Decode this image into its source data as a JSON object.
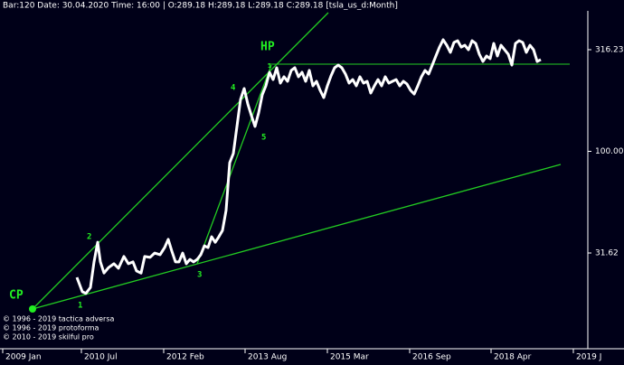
{
  "chart_data": {
    "type": "line",
    "title": "Bar:120 Date: 30.04.2020 Time: 16:00 | O:289.18 H:289.18 L:289.18 C:289.18 [tsla_us_d:Month]",
    "log_y": true,
    "grid": false,
    "xlim": [
      -21.25,
      141.25
    ],
    "xticks": [
      {
        "value": -20.5,
        "label": "2009 Jan"
      },
      {
        "value": 1.25,
        "label": "2010 Jul"
      },
      {
        "value": 24,
        "label": "2012 Feb"
      },
      {
        "value": 46.5,
        "label": "2013 Aug"
      },
      {
        "value": 69.25,
        "label": "2015 Mar"
      },
      {
        "value": 92,
        "label": "2016 Sep"
      },
      {
        "value": 114.5,
        "label": "2018 Apr"
      },
      {
        "value": 137.25,
        "label": "2019 J"
      }
    ],
    "ylim": [
      10.8,
      491
    ],
    "yticks": [
      31.62,
      {
        "value": 100,
        "label": "100.00"
      },
      316.23
    ],
    "x": [
      0,
      1.5,
      2.5,
      3.75,
      4.75,
      5.75,
      6.5,
      7.5,
      8.75,
      10.25,
      11.5,
      13,
      14.25,
      15.5,
      16.5,
      17.75,
      18.75,
      20.25,
      21.5,
      23,
      24.25,
      25.25,
      26.25,
      27.25,
      28.25,
      29.25,
      30.25,
      31.25,
      32.25,
      33.25,
      34.25,
      35.25,
      36.25,
      37.25,
      38.25,
      39.25,
      40.25,
      41.25,
      42.25,
      43.25,
      44.25,
      45.25,
      46.25,
      47.25,
      48.25,
      49.25,
      50.25,
      51.25,
      52.25,
      53.25,
      54.25,
      55.25,
      56.25,
      57.25,
      58.25,
      59.25,
      60.25,
      61.25,
      62.25,
      63.25,
      64.25,
      65.25,
      66.25,
      67.25,
      68.25,
      69.25,
      70.25,
      71.25,
      72.25,
      73.25,
      74.25,
      75.25,
      76.25,
      77.25,
      78.25,
      79.25,
      80.25,
      81.25,
      82.25,
      83.25,
      84.25,
      85.25,
      86.25,
      87.25,
      88.25,
      89.25,
      90.25,
      91.25,
      92.25,
      93.25,
      94.25,
      95.25,
      96.25,
      97.25,
      98.25,
      99.25,
      100.25,
      101.25,
      102.25,
      103.25,
      104.25,
      105.25,
      106.25,
      107.25,
      108.25,
      109.25,
      110.25,
      111.25,
      112.25,
      113.25,
      114.25,
      115.25,
      116.25,
      117.25,
      118.25,
      119.25,
      120.25,
      121.25,
      122.25,
      123.25,
      124.25,
      125.25,
      126.25,
      127.25,
      128.25
    ],
    "series": [
      {
        "color": "#ffffff",
        "values": [
          24.0,
          20.4,
          20.0,
          21.4,
          28.6,
          35.7,
          28.6,
          25.2,
          26.8,
          28.0,
          26.6,
          30.4,
          28.0,
          28.6,
          25.8,
          25.2,
          30.4,
          30.1,
          31.6,
          31.0,
          33.6,
          36.9,
          32.3,
          28.6,
          28.6,
          31.6,
          28.0,
          29.4,
          28.6,
          29.4,
          31.0,
          34.3,
          33.6,
          38.0,
          35.7,
          38.0,
          40.8,
          51.2,
          87.9,
          97.5,
          132.5,
          180.2,
          203.7,
          171.1,
          149.9,
          132.5,
          154.6,
          189.7,
          210.0,
          244.8,
          225.5,
          257.7,
          216.6,
          232.7,
          221.0,
          250.1,
          257.7,
          232.7,
          244.8,
          221.0,
          250.1,
          210.0,
          221.0,
          199.5,
          183.7,
          210.0,
          235.0,
          257.7,
          265.6,
          257.7,
          240.0,
          216.6,
          225.5,
          210.0,
          232.7,
          216.6,
          221.0,
          193.5,
          210.0,
          225.5,
          210.0,
          232.7,
          216.6,
          221.0,
          225.5,
          210.0,
          221.0,
          214.4,
          199.5,
          191.3,
          210.0,
          232.7,
          250.1,
          240.0,
          265.6,
          294.4,
          325.7,
          353.9,
          332.7,
          306.7,
          343.4,
          350.1,
          325.7,
          332.7,
          316.2,
          350.1,
          339.6,
          300.4,
          276.7,
          294.4,
          285.6,
          339.6,
          294.4,
          332.7,
          316.2,
          300.4,
          265.6,
          339.6,
          350.1,
          343.4,
          306.7,
          332.7,
          316.2,
          276.7,
          282.7
        ]
      }
    ],
    "annotations": [
      "CP",
      "HP",
      "1",
      "2",
      "3",
      "4",
      "5",
      "1"
    ],
    "copyright": [
      "© 1996 - 2019 tactica adversa",
      "© 1996 - 2019 protoforma",
      "© 2010 - 2019 skilful pro"
    ]
  }
}
